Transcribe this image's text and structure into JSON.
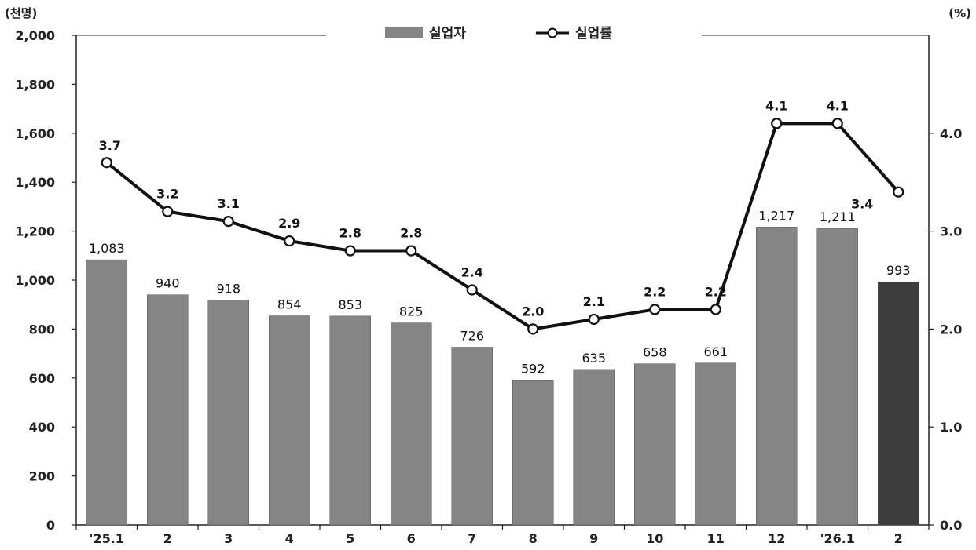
{
  "chart_data": {
    "type": "bar",
    "categories": [
      "'25.1",
      "2",
      "3",
      "4",
      "5",
      "6",
      "7",
      "8",
      "9",
      "10",
      "11",
      "12",
      "'26.1",
      "2"
    ],
    "series": [
      {
        "name": "실업자",
        "chart_type": "bar",
        "axis": "left",
        "values": [
          1083,
          940,
          918,
          854,
          853,
          825,
          726,
          592,
          635,
          658,
          661,
          1217,
          1211,
          993
        ],
        "labels": [
          "1,083",
          "940",
          "918",
          "854",
          "853",
          "825",
          "726",
          "592",
          "635",
          "658",
          "661",
          "1,217",
          "1,211",
          "993"
        ]
      },
      {
        "name": "실업률",
        "chart_type": "line",
        "axis": "right",
        "values": [
          3.7,
          3.2,
          3.1,
          2.9,
          2.8,
          2.8,
          2.4,
          2.0,
          2.1,
          2.2,
          2.2,
          4.1,
          4.1,
          3.4
        ],
        "labels": [
          "3.7",
          "3.2",
          "3.1",
          "2.9",
          "2.8",
          "2.8",
          "2.4",
          "2.0",
          "2.1",
          "2.2",
          "2.2",
          "4.1",
          "4.1",
          "3.4"
        ]
      }
    ],
    "y_left": {
      "unit": "(천명)",
      "ylim": [
        0,
        2000
      ],
      "ticks": [
        "0",
        "200",
        "400",
        "600",
        "800",
        "1,000",
        "1,200",
        "1,400",
        "1,600",
        "1,800",
        "2,000"
      ]
    },
    "y_right": {
      "unit": "(%)",
      "ylim": [
        0,
        5
      ],
      "ticks": [
        "0.0",
        "1.0",
        "2.0",
        "3.0",
        "4.0"
      ]
    },
    "title": "",
    "xlabel": "",
    "grid": false,
    "legend_position": "top-center",
    "highlight_last_bar": true
  },
  "colors": {
    "bar": "#858585",
    "bar_highlight": "#3c3c3c",
    "line": "#111111",
    "marker_fill": "#ffffff",
    "axis": "#222222"
  }
}
